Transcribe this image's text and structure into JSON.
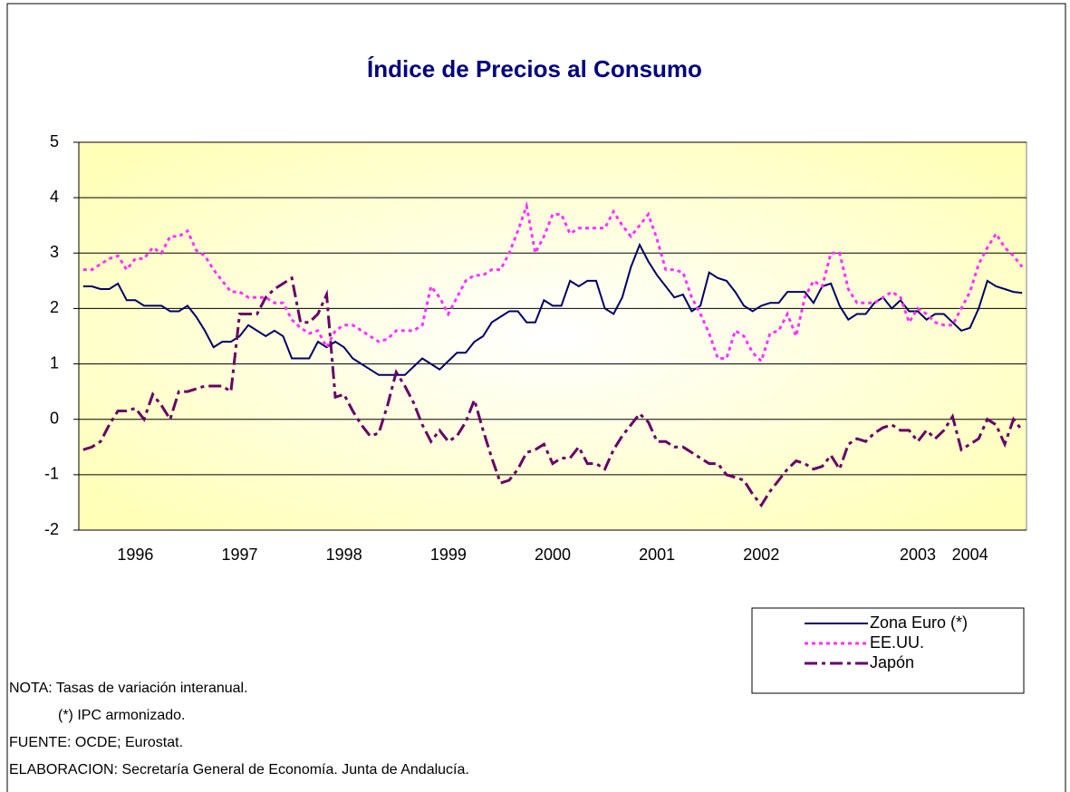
{
  "chart_data": {
    "type": "line",
    "title": "Índice de Precios al Consumo",
    "categories": [
      null,
      null,
      null,
      null,
      null,
      null,
      "1996",
      null,
      null,
      null,
      null,
      null,
      null,
      null,
      null,
      null,
      null,
      null,
      "1997",
      null,
      null,
      null,
      null,
      null,
      null,
      null,
      null,
      null,
      null,
      null,
      "1998",
      null,
      null,
      null,
      null,
      null,
      null,
      null,
      null,
      null,
      null,
      null,
      "1999",
      null,
      null,
      null,
      null,
      null,
      null,
      null,
      null,
      null,
      null,
      null,
      "2000",
      null,
      null,
      null,
      null,
      null,
      null,
      null,
      null,
      null,
      null,
      null,
      "2001",
      null,
      null,
      null,
      null,
      null,
      null,
      null,
      null,
      null,
      null,
      null,
      "2002",
      null,
      null,
      null,
      null,
      null,
      null,
      null,
      null,
      null,
      null,
      null,
      null,
      null,
      null,
      null,
      null,
      null,
      "2003",
      null,
      null,
      null,
      null,
      null,
      "2004",
      null,
      null,
      null,
      null,
      null,
      null
    ],
    "series": [
      {
        "name": "Zona Euro (*)",
        "color": "#000066",
        "values": [
          2.4,
          2.4,
          2.35,
          2.35,
          2.45,
          2.15,
          2.15,
          2.05,
          2.05,
          2.05,
          1.95,
          1.95,
          2.05,
          1.85,
          1.6,
          1.3,
          1.4,
          1.4,
          1.5,
          1.7,
          1.6,
          1.5,
          1.6,
          1.5,
          1.1,
          1.1,
          1.1,
          1.4,
          1.3,
          1.4,
          1.3,
          1.1,
          1.0,
          0.9,
          0.8,
          0.8,
          0.8,
          0.8,
          0.95,
          1.1,
          1.0,
          0.9,
          1.05,
          1.2,
          1.2,
          1.4,
          1.5,
          1.75,
          1.85,
          1.95,
          1.95,
          1.75,
          1.75,
          2.15,
          2.05,
          2.05,
          2.5,
          2.4,
          2.5,
          2.5,
          2.0,
          1.9,
          2.2,
          2.75,
          3.15,
          2.85,
          2.6,
          2.4,
          2.2,
          2.25,
          1.95,
          2.05,
          2.65,
          2.55,
          2.5,
          2.3,
          2.05,
          1.95,
          2.05,
          2.1,
          2.1,
          2.3,
          2.3,
          2.3,
          2.1,
          2.4,
          2.45,
          2.05,
          1.8,
          1.9,
          1.9,
          2.1,
          2.2,
          2.0,
          2.15,
          1.95,
          1.95,
          1.8,
          1.9,
          1.9,
          1.75,
          1.6,
          1.65,
          2.0,
          2.5,
          2.4,
          2.35,
          2.3,
          2.28
        ]
      },
      {
        "name": "EE.UU.",
        "color": "#ff33ff",
        "values": [
          2.7,
          2.7,
          2.8,
          2.9,
          2.95,
          2.7,
          2.9,
          2.9,
          3.1,
          3.0,
          3.3,
          3.3,
          3.4,
          3.05,
          2.95,
          2.7,
          2.5,
          2.3,
          2.3,
          2.2,
          2.2,
          2.2,
          2.1,
          2.1,
          1.8,
          1.65,
          1.55,
          1.6,
          1.3,
          1.6,
          1.7,
          1.7,
          1.6,
          1.5,
          1.4,
          1.45,
          1.6,
          1.6,
          1.6,
          1.7,
          2.4,
          2.2,
          1.9,
          2.2,
          2.5,
          2.6,
          2.6,
          2.7,
          2.7,
          3.0,
          3.4,
          3.85,
          3.0,
          3.3,
          3.7,
          3.7,
          3.35,
          3.45,
          3.45,
          3.45,
          3.45,
          3.75,
          3.5,
          3.3,
          3.5,
          3.7,
          3.25,
          2.7,
          2.7,
          2.65,
          2.2,
          1.9,
          1.55,
          1.1,
          1.1,
          1.6,
          1.5,
          1.2,
          1.05,
          1.55,
          1.6,
          1.9,
          1.5,
          2.2,
          2.5,
          2.4,
          3.0,
          3.0,
          2.35,
          2.1,
          2.1,
          2.1,
          2.2,
          2.3,
          2.2,
          1.75,
          2.0,
          1.9,
          1.75,
          1.7,
          1.7,
          2.0,
          2.3,
          2.8,
          3.1,
          3.35,
          3.1,
          2.95,
          2.75
        ]
      },
      {
        "name": "Japón",
        "color": "#660066",
        "values": [
          -0.55,
          -0.5,
          -0.4,
          -0.1,
          0.15,
          0.15,
          0.2,
          0.0,
          0.45,
          0.25,
          0.0,
          0.5,
          0.5,
          0.55,
          0.6,
          0.6,
          0.6,
          0.5,
          1.9,
          1.9,
          1.9,
          2.2,
          2.35,
          2.45,
          2.55,
          1.75,
          1.75,
          1.9,
          2.25,
          0.4,
          0.45,
          0.15,
          -0.1,
          -0.3,
          -0.25,
          0.25,
          0.85,
          0.6,
          0.3,
          -0.1,
          -0.4,
          -0.2,
          -0.4,
          -0.3,
          -0.05,
          0.35,
          -0.2,
          -0.7,
          -1.15,
          -1.1,
          -0.9,
          -0.6,
          -0.55,
          -0.45,
          -0.8,
          -0.7,
          -0.7,
          -0.5,
          -0.8,
          -0.8,
          -0.9,
          -0.55,
          -0.3,
          -0.1,
          0.1,
          -0.05,
          -0.4,
          -0.4,
          -0.5,
          -0.5,
          -0.6,
          -0.7,
          -0.8,
          -0.8,
          -1.0,
          -1.05,
          -1.1,
          -1.35,
          -1.55,
          -1.3,
          -1.1,
          -0.9,
          -0.75,
          -0.8,
          -0.9,
          -0.85,
          -0.65,
          -0.9,
          -0.45,
          -0.35,
          -0.4,
          -0.25,
          -0.15,
          -0.1,
          -0.2,
          -0.2,
          -0.4,
          -0.2,
          -0.35,
          -0.2,
          0.05,
          -0.55,
          -0.45,
          -0.35,
          0.0,
          -0.1,
          -0.45,
          0.0,
          -0.2
        ]
      }
    ],
    "ylim": [
      -2,
      5
    ],
    "yticks": [
      -2,
      -1,
      0,
      1,
      2,
      3,
      4,
      5
    ],
    "grid": true,
    "legend": "bottom-right",
    "notes": [
      "NOTA: Tasas de variación interanual.",
      "(*) IPC armonizado.",
      "FUENTE: OCDE; Eurostat.",
      "ELABORACION: Secretaría General de Economía. Junta de Andalucía."
    ]
  }
}
